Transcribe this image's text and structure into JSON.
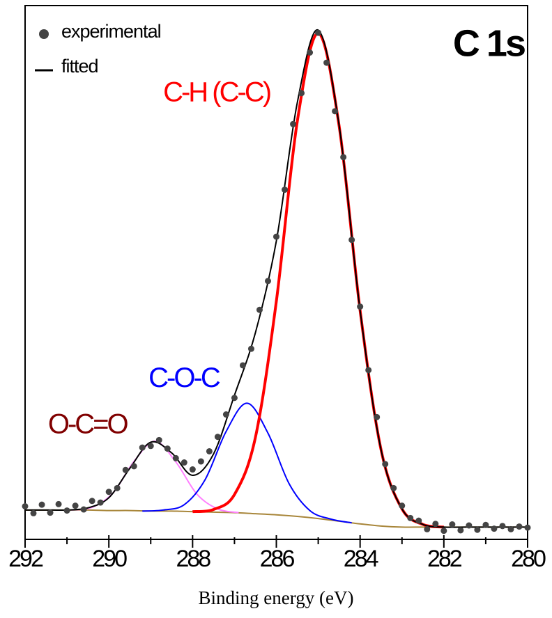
{
  "chart_data": {
    "type": "xps",
    "title": "C 1s",
    "x_label": "Binding energy (eV)",
    "xlim": [
      292,
      280
    ],
    "xticks": [
      292,
      290,
      288,
      286,
      284,
      282,
      280
    ],
    "xminorticks": [
      291,
      289,
      287,
      285,
      283,
      281
    ],
    "ylim": [
      0,
      100
    ],
    "series": [
      {
        "color": "#a8863a",
        "kind": "line",
        "x": [
          292,
          291.5,
          291,
          290.5,
          290,
          289.5,
          289,
          288.5,
          288,
          287.5,
          287,
          286.5,
          286,
          285.5,
          285,
          284.5,
          284,
          283.5,
          283,
          282.5,
          282,
          281.5,
          281,
          280.5,
          280
        ],
        "values": [
          5.5,
          5.5,
          5.5,
          5.5,
          5.4,
          5.4,
          5.3,
          5.3,
          5.2,
          5.1,
          5.0,
          4.8,
          4.6,
          4.3,
          3.9,
          3.4,
          2.9,
          2.5,
          2.3,
          2.3,
          2.3,
          2.3,
          2.3,
          2.3,
          2.3
        ]
      },
      {
        "name": "O-C=O",
        "color": "#ff80ff",
        "label_color": "#800000",
        "kind": "line",
        "x": [
          290.9,
          290.4,
          289.9,
          289.4,
          288.9,
          288.4,
          287.9,
          287.4,
          286.9
        ],
        "values": [
          5.5,
          6.0,
          8.7,
          14.6,
          18.4,
          14.5,
          8.5,
          5.7,
          5.0
        ]
      },
      {
        "name": "C-O-C",
        "color": "#0000ff",
        "label_color": "#0000ff",
        "kind": "line",
        "x": [
          289.2,
          288.7,
          288.2,
          287.7,
          287.2,
          286.7,
          286.2,
          285.7,
          285.2,
          284.7,
          284.2
        ],
        "values": [
          5.3,
          5.5,
          6.5,
          11.2,
          20.2,
          25.5,
          19.9,
          10.5,
          5.4,
          3.8,
          3.1
        ]
      },
      {
        "name": "C-H (C-C)",
        "color": "#ff0000",
        "label_color": "#ff0000",
        "kind": "line",
        "x": [
          288,
          287.5,
          287,
          286.5,
          286,
          285.5,
          285,
          284.5,
          284,
          283.5,
          283,
          282.5,
          282
        ],
        "values": [
          5.2,
          5.6,
          8.4,
          19.1,
          44.6,
          78.3,
          94.8,
          77.4,
          42.9,
          16.8,
          5.7,
          2.8,
          2.3
        ]
      },
      {
        "name": "fitted",
        "color": "#000000",
        "kind": "line",
        "in_legend": true,
        "x": [
          292,
          291.5,
          291,
          290.5,
          290,
          289.5,
          289,
          288.5,
          288,
          287.5,
          287,
          286.5,
          286,
          285.5,
          285,
          284.5,
          284,
          283.5,
          283,
          282.5,
          282,
          281.5,
          281,
          280.5,
          280
        ],
        "values": [
          5.5,
          5.5,
          5.5,
          5.9,
          7.8,
          13.3,
          18.2,
          16.2,
          12.0,
          16.0,
          27.0,
          38.7,
          55.9,
          81.8,
          95.4,
          77.5,
          42.9,
          16.8,
          5.7,
          2.8,
          2.3,
          2.3,
          2.3,
          2.3,
          2.3
        ]
      },
      {
        "name": "experimental",
        "color": "#444444",
        "kind": "points",
        "in_legend": true,
        "x": [
          292.0,
          291.8,
          291.6,
          291.4,
          291.2,
          291.0,
          290.8,
          290.6,
          290.4,
          290.2,
          290.0,
          289.8,
          289.6,
          289.4,
          289.2,
          289.0,
          288.8,
          288.6,
          288.4,
          288.2,
          288.0,
          287.8,
          287.6,
          287.4,
          287.2,
          287.0,
          286.8,
          286.6,
          286.4,
          286.2,
          286.0,
          285.8,
          285.6,
          285.4,
          285.2,
          285.0,
          284.8,
          284.6,
          284.4,
          284.2,
          284.0,
          283.8,
          283.6,
          283.4,
          283.2,
          283.0,
          282.8,
          282.6,
          282.4,
          282.2,
          282.0,
          281.8,
          281.6,
          281.4,
          281.2,
          281.0,
          280.8,
          280.6,
          280.4,
          280.2,
          280.0
        ],
        "values": [
          6.2,
          4.9,
          6.5,
          5.0,
          6.6,
          5.4,
          6.3,
          5.6,
          7.2,
          6.9,
          8.9,
          9.6,
          13.0,
          13.7,
          17.2,
          17.5,
          18.6,
          17.0,
          15.2,
          14.4,
          13.1,
          14.6,
          16.5,
          19.2,
          23.4,
          26.5,
          32.6,
          35.7,
          43.0,
          48.4,
          56.7,
          65.5,
          77.8,
          83.6,
          91.2,
          94.9,
          89.3,
          80.2,
          71.6,
          56.1,
          43.6,
          31.7,
          22.9,
          14.1,
          9.6,
          6.3,
          4.0,
          3.5,
          1.9,
          2.9,
          1.6,
          2.8,
          1.7,
          2.6,
          1.8,
          2.7,
          2.0,
          2.5,
          1.9,
          2.4,
          2.2
        ]
      }
    ]
  }
}
